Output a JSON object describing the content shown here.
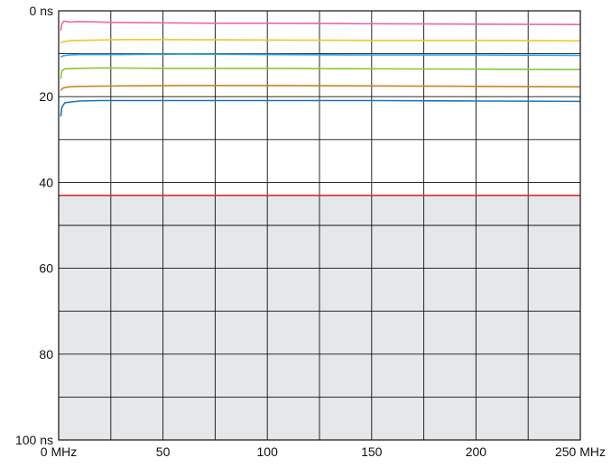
{
  "chart_data": {
    "type": "line",
    "title": "",
    "xlabel": "",
    "ylabel": "",
    "xlim": [
      0,
      250
    ],
    "ylim": [
      0,
      100
    ],
    "y_inverted": true,
    "grid": true,
    "legend": "none",
    "x_ticks": [
      {
        "value": 0,
        "label": "0 MHz"
      },
      {
        "value": 50,
        "label": "50"
      },
      {
        "value": 100,
        "label": "100"
      },
      {
        "value": 150,
        "label": "150"
      },
      {
        "value": 200,
        "label": "200"
      },
      {
        "value": 250,
        "label": "250 MHz"
      }
    ],
    "y_ticks": [
      {
        "value": 0,
        "label": "0 ns"
      },
      {
        "value": 20,
        "label": "20"
      },
      {
        "value": 40,
        "label": "40"
      },
      {
        "value": 60,
        "label": "60"
      },
      {
        "value": 80,
        "label": "80"
      },
      {
        "value": 100,
        "label": "100 ns"
      }
    ],
    "limit": {
      "value": 43,
      "color": "#e8262b",
      "fail_region_color": "#e6e7e9"
    },
    "series": [
      {
        "color": "#e86aa6",
        "points": [
          [
            1,
            4.6
          ],
          [
            1.5,
            3.1
          ],
          [
            2.5,
            2.4
          ],
          [
            5,
            2.6
          ],
          [
            10,
            2.5
          ],
          [
            20,
            2.6
          ],
          [
            25,
            2.7
          ],
          [
            50,
            2.8
          ],
          [
            75,
            2.9
          ],
          [
            100,
            2.9
          ],
          [
            150,
            3.0
          ],
          [
            200,
            3.1
          ],
          [
            250,
            3.2
          ]
        ]
      },
      {
        "color": "#f5c230",
        "points": [
          [
            1,
            7.6
          ],
          [
            2,
            7.2
          ],
          [
            5,
            7.0
          ],
          [
            10,
            6.9
          ],
          [
            20,
            6.8
          ],
          [
            30,
            6.7
          ],
          [
            50,
            6.7
          ],
          [
            100,
            6.8
          ],
          [
            150,
            6.9
          ],
          [
            200,
            6.9
          ],
          [
            250,
            7.0
          ]
        ]
      },
      {
        "color": "#27a9e1",
        "points": [
          [
            1,
            10.8
          ],
          [
            2,
            10.5
          ],
          [
            5,
            10.3
          ],
          [
            10,
            10.2
          ],
          [
            30,
            10.2
          ],
          [
            60,
            10.1
          ],
          [
            100,
            10.2
          ],
          [
            150,
            10.3
          ],
          [
            200,
            10.3
          ],
          [
            250,
            10.4
          ]
        ]
      },
      {
        "color": "#8cc63f",
        "points": [
          [
            1,
            15.8
          ],
          [
            1.5,
            14.0
          ],
          [
            3,
            13.5
          ],
          [
            10,
            13.4
          ],
          [
            20,
            13.3
          ],
          [
            50,
            13.4
          ],
          [
            100,
            13.4
          ],
          [
            150,
            13.5
          ],
          [
            200,
            13.6
          ],
          [
            250,
            13.7
          ]
        ]
      },
      {
        "color": "#c8861f",
        "points": [
          [
            1,
            18.6
          ],
          [
            2,
            18.0
          ],
          [
            5,
            17.7
          ],
          [
            10,
            17.6
          ],
          [
            30,
            17.5
          ],
          [
            60,
            17.4
          ],
          [
            100,
            17.4
          ],
          [
            150,
            17.5
          ],
          [
            200,
            17.6
          ],
          [
            250,
            17.7
          ]
        ]
      },
      {
        "color": "#1b75bb",
        "points": [
          [
            1,
            24.6
          ],
          [
            1.5,
            22.5
          ],
          [
            3,
            21.4
          ],
          [
            10,
            21.0
          ],
          [
            20,
            20.9
          ],
          [
            50,
            20.9
          ],
          [
            100,
            20.9
          ],
          [
            150,
            20.9
          ],
          [
            200,
            21.0
          ],
          [
            250,
            21.1
          ]
        ]
      }
    ]
  }
}
